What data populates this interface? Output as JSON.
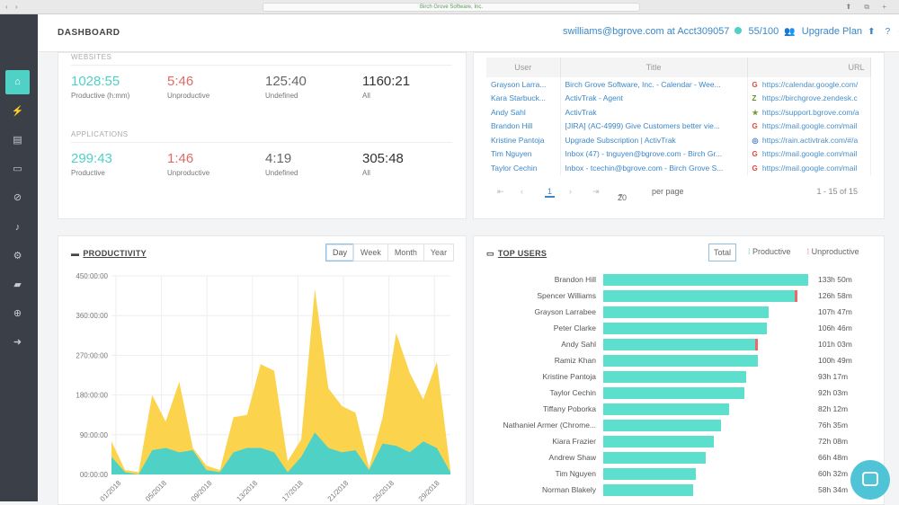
{
  "browser": {
    "url": "Birch Grove Software, Inc."
  },
  "header": {
    "title": "DASHBOARD",
    "account": "swilliams@bgrove.com at Acct309057",
    "users": "55/100",
    "upgrade": "Upgrade Plan"
  },
  "websites": {
    "label": "WEBSITES",
    "stats": [
      {
        "value": "1028:55",
        "label": "Productive (h:mm)"
      },
      {
        "value": "5:46",
        "label": "Unproductive"
      },
      {
        "value": "125:40",
        "label": "Undefined"
      },
      {
        "value": "1160:21",
        "label": "All"
      }
    ]
  },
  "applications": {
    "label": "APPLICATIONS",
    "stats": [
      {
        "value": "299:43",
        "label": "Productive"
      },
      {
        "value": "1:46",
        "label": "Unproductive"
      },
      {
        "value": "4:19",
        "label": "Undefined"
      },
      {
        "value": "305:48",
        "label": "All"
      }
    ]
  },
  "url_table": {
    "columns": [
      "User",
      "Title",
      "URL"
    ],
    "rows": [
      {
        "user": "Grayson Larra...",
        "title": "Birch Grove Software, Inc. - Calendar - Wee...",
        "icon": "G",
        "url": "https://calendar.google.com/"
      },
      {
        "user": "Kara Starbuck...",
        "title": "ActivTrak - Agent",
        "icon": "Z",
        "url": "https://birchgrove.zendesk.c"
      },
      {
        "user": "Andy Sahl",
        "title": "ActivTrak",
        "icon": "★",
        "url": "https://support.bgrove.com/a"
      },
      {
        "user": "Brandon Hill",
        "title": "[JIRA] (AC-4999) Give Customers better vie...",
        "icon": "G",
        "url": "https://mail.google.com/mail"
      },
      {
        "user": "Kristine Pantoja",
        "title": "Upgrade Subscription | ActivTrak",
        "icon": "◎",
        "url": "https://rain.activtrak.com/#/a"
      },
      {
        "user": "Tim Nguyen",
        "title": "Inbox (47) - tnguyen@bgrove.com - Birch Gr...",
        "icon": "G",
        "url": "https://mail.google.com/mail"
      },
      {
        "user": "Taylor Cechin",
        "title": "Inbox - tcechin@bgrove.com - Birch Grove S...",
        "icon": "G",
        "url": "https://mail.google.com/mail"
      }
    ],
    "pager": {
      "page": "1",
      "page_size": "20",
      "per_page_label": "per page",
      "range": "1 - 15 of 15"
    }
  },
  "productivity": {
    "title": "PRODUCTIVITY",
    "ranges": [
      "Day",
      "Week",
      "Month",
      "Year"
    ],
    "selected_range": "Day"
  },
  "top_users": {
    "title": "TOP USERS",
    "filters": [
      "Total",
      "Productive",
      "Unproductive"
    ],
    "selected_filter": "Total",
    "rows": [
      {
        "name": "Brandon Hill",
        "time": "133h 50m",
        "total": 133.8,
        "unproductive": 0
      },
      {
        "name": "Spencer Williams",
        "time": "126h 58m",
        "total": 126.97,
        "unproductive": 1.5
      },
      {
        "name": "Grayson Larrabee",
        "time": "107h 47m",
        "total": 107.8,
        "unproductive": 0
      },
      {
        "name": "Peter Clarke",
        "time": "106h 46m",
        "total": 106.8,
        "unproductive": 0
      },
      {
        "name": "Andy Sahl",
        "time": "101h 03m",
        "total": 101.05,
        "unproductive": 0.5
      },
      {
        "name": "Ramiz Khan",
        "time": "100h 49m",
        "total": 100.8,
        "unproductive": 0
      },
      {
        "name": "Kristine Pantoja",
        "time": "93h 17m",
        "total": 93.3,
        "unproductive": 0
      },
      {
        "name": "Taylor Cechin",
        "time": "92h 03m",
        "total": 92.05,
        "unproductive": 0
      },
      {
        "name": "Tiffany Poborka",
        "time": "82h 12m",
        "total": 82.2,
        "unproductive": 0
      },
      {
        "name": "Nathaniel Armer (Chrome...",
        "time": "76h 35m",
        "total": 76.6,
        "unproductive": 0
      },
      {
        "name": "Kiara Frazier",
        "time": "72h 08m",
        "total": 72.1,
        "unproductive": 0
      },
      {
        "name": "Andrew Shaw",
        "time": "66h 48m",
        "total": 66.8,
        "unproductive": 0
      },
      {
        "name": "Tim Nguyen",
        "time": "60h 32m",
        "total": 60.5,
        "unproductive": 0
      },
      {
        "name": "Norman Blakely",
        "time": "58h 34m",
        "total": 58.6,
        "unproductive": 0
      }
    ]
  },
  "chart_data": {
    "type": "area",
    "yticks": [
      "450:00:00",
      "360:00:00",
      "270:00:00",
      "180:00:00",
      "90:00:00",
      "00:00:00"
    ],
    "ylim": [
      0,
      450
    ],
    "xticks": [
      "01/2018",
      "05/2018",
      "09/2018",
      "13/2018",
      "17/2018",
      "21/2018",
      "25/2018",
      "29/2018"
    ],
    "series": [
      {
        "color": "#4fd1c5",
        "values": [
          40,
          5,
          0,
          55,
          60,
          50,
          55,
          10,
          5,
          50,
          60,
          60,
          50,
          5,
          40,
          95,
          60,
          50,
          55,
          10,
          70,
          65,
          50,
          75,
          60,
          5
        ]
      },
      {
        "color": "#fcd34d",
        "values": [
          75,
          10,
          5,
          180,
          120,
          210,
          60,
          20,
          10,
          130,
          135,
          250,
          235,
          30,
          80,
          420,
          195,
          155,
          140,
          15,
          130,
          320,
          230,
          170,
          255,
          10
        ]
      }
    ]
  },
  "colors": {
    "accent": "#4fd1c5",
    "unproductive": "#e06a6a",
    "link": "#3b87c8",
    "undefined_area": "#fcd34d"
  }
}
